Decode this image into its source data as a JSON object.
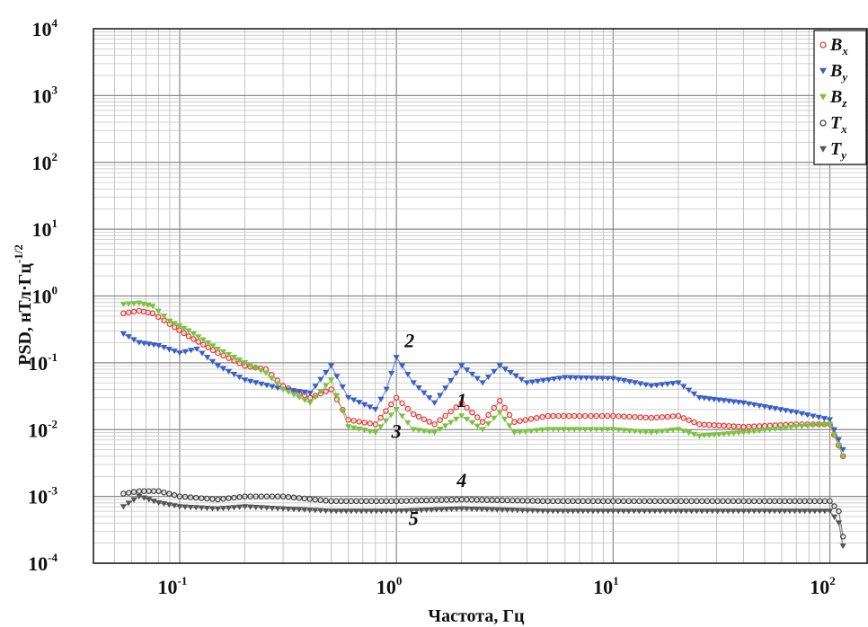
{
  "chart_data": {
    "type": "line",
    "title": "",
    "xlabel": "Частота, Гц",
    "ylabel_main": "PSD,  нТл·Гц",
    "ylabel_exp": "-1/2",
    "xscale": "log",
    "yscale": "log",
    "xlim": [
      0.04,
      150
    ],
    "ylim": [
      0.0001,
      10000
    ],
    "x_ticks": [
      {
        "base": "10",
        "exp": "-1",
        "value": 0.1
      },
      {
        "base": "10",
        "exp": "0",
        "value": 1
      },
      {
        "base": "10",
        "exp": "1",
        "value": 10
      },
      {
        "base": "10",
        "exp": "2",
        "value": 100
      }
    ],
    "y_ticks": [
      {
        "base": "10",
        "exp": "-4",
        "value": 0.0001
      },
      {
        "base": "10",
        "exp": "-3",
        "value": 0.001
      },
      {
        "base": "10",
        "exp": "-2",
        "value": 0.01
      },
      {
        "base": "10",
        "exp": "-1",
        "value": 0.1
      },
      {
        "base": "10",
        "exp": "0",
        "value": 1
      },
      {
        "base": "10",
        "exp": "1",
        "value": 10
      },
      {
        "base": "10",
        "exp": "2",
        "value": 100
      },
      {
        "base": "10",
        "exp": "3",
        "value": 1000
      },
      {
        "base": "10",
        "exp": "4",
        "value": 10000
      }
    ],
    "grid": true,
    "legend_position": "top-right",
    "series": [
      {
        "name_base": "B",
        "name_sub": "x",
        "color": "#e0413a",
        "marker": "circle",
        "points": [
          [
            0.055,
            0.55
          ],
          [
            0.065,
            0.6
          ],
          [
            0.075,
            0.55
          ],
          [
            0.09,
            0.38
          ],
          [
            0.11,
            0.25
          ],
          [
            0.15,
            0.14
          ],
          [
            0.2,
            0.09
          ],
          [
            0.25,
            0.08
          ],
          [
            0.3,
            0.045
          ],
          [
            0.4,
            0.03
          ],
          [
            0.5,
            0.04
          ],
          [
            0.6,
            0.014
          ],
          [
            0.8,
            0.012
          ],
          [
            1.0,
            0.03
          ],
          [
            1.2,
            0.017
          ],
          [
            1.5,
            0.012
          ],
          [
            2.0,
            0.025
          ],
          [
            2.5,
            0.013
          ],
          [
            3.0,
            0.027
          ],
          [
            3.5,
            0.013
          ],
          [
            5,
            0.016
          ],
          [
            7,
            0.016
          ],
          [
            10,
            0.016
          ],
          [
            15,
            0.015
          ],
          [
            20,
            0.016
          ],
          [
            25,
            0.012
          ],
          [
            40,
            0.011
          ],
          [
            70,
            0.012
          ],
          [
            100,
            0.012
          ],
          [
            115,
            0.004
          ]
        ]
      },
      {
        "name_base": "B",
        "name_sub": "y",
        "color": "#3a5ec8",
        "marker": "triangle-down",
        "points": [
          [
            0.055,
            0.27
          ],
          [
            0.065,
            0.2
          ],
          [
            0.08,
            0.18
          ],
          [
            0.1,
            0.14
          ],
          [
            0.12,
            0.16
          ],
          [
            0.15,
            0.09
          ],
          [
            0.2,
            0.055
          ],
          [
            0.3,
            0.04
          ],
          [
            0.4,
            0.035
          ],
          [
            0.5,
            0.09
          ],
          [
            0.6,
            0.03
          ],
          [
            0.8,
            0.02
          ],
          [
            0.9,
            0.04
          ],
          [
            1.0,
            0.12
          ],
          [
            1.2,
            0.05
          ],
          [
            1.5,
            0.025
          ],
          [
            2.0,
            0.09
          ],
          [
            2.5,
            0.05
          ],
          [
            3.0,
            0.09
          ],
          [
            4.0,
            0.05
          ],
          [
            6,
            0.06
          ],
          [
            10,
            0.058
          ],
          [
            15,
            0.045
          ],
          [
            20,
            0.05
          ],
          [
            25,
            0.03
          ],
          [
            40,
            0.025
          ],
          [
            70,
            0.018
          ],
          [
            100,
            0.014
          ],
          [
            115,
            0.005
          ]
        ]
      },
      {
        "name_base": "B",
        "name_sub": "z",
        "color": "#7cc242",
        "marker": "triangle-down",
        "points": [
          [
            0.055,
            0.75
          ],
          [
            0.065,
            0.78
          ],
          [
            0.075,
            0.7
          ],
          [
            0.09,
            0.42
          ],
          [
            0.11,
            0.3
          ],
          [
            0.15,
            0.16
          ],
          [
            0.2,
            0.1
          ],
          [
            0.25,
            0.07
          ],
          [
            0.3,
            0.04
          ],
          [
            0.4,
            0.025
          ],
          [
            0.5,
            0.055
          ],
          [
            0.6,
            0.011
          ],
          [
            0.8,
            0.009
          ],
          [
            1.0,
            0.02
          ],
          [
            1.2,
            0.01
          ],
          [
            1.5,
            0.009
          ],
          [
            2.0,
            0.016
          ],
          [
            2.5,
            0.01
          ],
          [
            3.0,
            0.018
          ],
          [
            3.5,
            0.009
          ],
          [
            5,
            0.01
          ],
          [
            7,
            0.01
          ],
          [
            10,
            0.01
          ],
          [
            15,
            0.009
          ],
          [
            20,
            0.01
          ],
          [
            25,
            0.008
          ],
          [
            40,
            0.009
          ],
          [
            70,
            0.011
          ],
          [
            100,
            0.012
          ],
          [
            115,
            0.004
          ]
        ]
      },
      {
        "name_base": "T",
        "name_sub": "x",
        "color": "#444444",
        "marker": "circle",
        "points": [
          [
            0.055,
            0.0011
          ],
          [
            0.065,
            0.0012
          ],
          [
            0.08,
            0.0012
          ],
          [
            0.1,
            0.001
          ],
          [
            0.15,
            0.0009
          ],
          [
            0.2,
            0.001
          ],
          [
            0.3,
            0.001
          ],
          [
            0.5,
            0.00085
          ],
          [
            1,
            0.00085
          ],
          [
            2,
            0.0009
          ],
          [
            5,
            0.00085
          ],
          [
            10,
            0.00085
          ],
          [
            50,
            0.00085
          ],
          [
            100,
            0.00085
          ],
          [
            110,
            0.0006
          ],
          [
            115,
            0.00025
          ]
        ]
      },
      {
        "name_base": "T",
        "name_sub": "y",
        "color": "#555555",
        "marker": "triangle-down",
        "points": [
          [
            0.055,
            0.0007
          ],
          [
            0.065,
            0.001
          ],
          [
            0.08,
            0.0008
          ],
          [
            0.1,
            0.0007
          ],
          [
            0.15,
            0.00065
          ],
          [
            0.2,
            0.0007
          ],
          [
            0.3,
            0.00065
          ],
          [
            0.5,
            0.0006
          ],
          [
            1,
            0.0006
          ],
          [
            2,
            0.00065
          ],
          [
            5,
            0.0006
          ],
          [
            10,
            0.0006
          ],
          [
            50,
            0.0006
          ],
          [
            100,
            0.0006
          ],
          [
            110,
            0.0004
          ],
          [
            115,
            0.00018
          ]
        ]
      }
    ],
    "annotations": [
      {
        "text": "1",
        "x": 2.0,
        "y": 0.022
      },
      {
        "text": "2",
        "x": 1.15,
        "y": 0.17
      },
      {
        "text": "3",
        "x": 1.0,
        "y": 0.0075
      },
      {
        "text": "4",
        "x": 2.0,
        "y": 0.0014
      },
      {
        "text": "5",
        "x": 1.2,
        "y": 0.00037
      }
    ]
  }
}
